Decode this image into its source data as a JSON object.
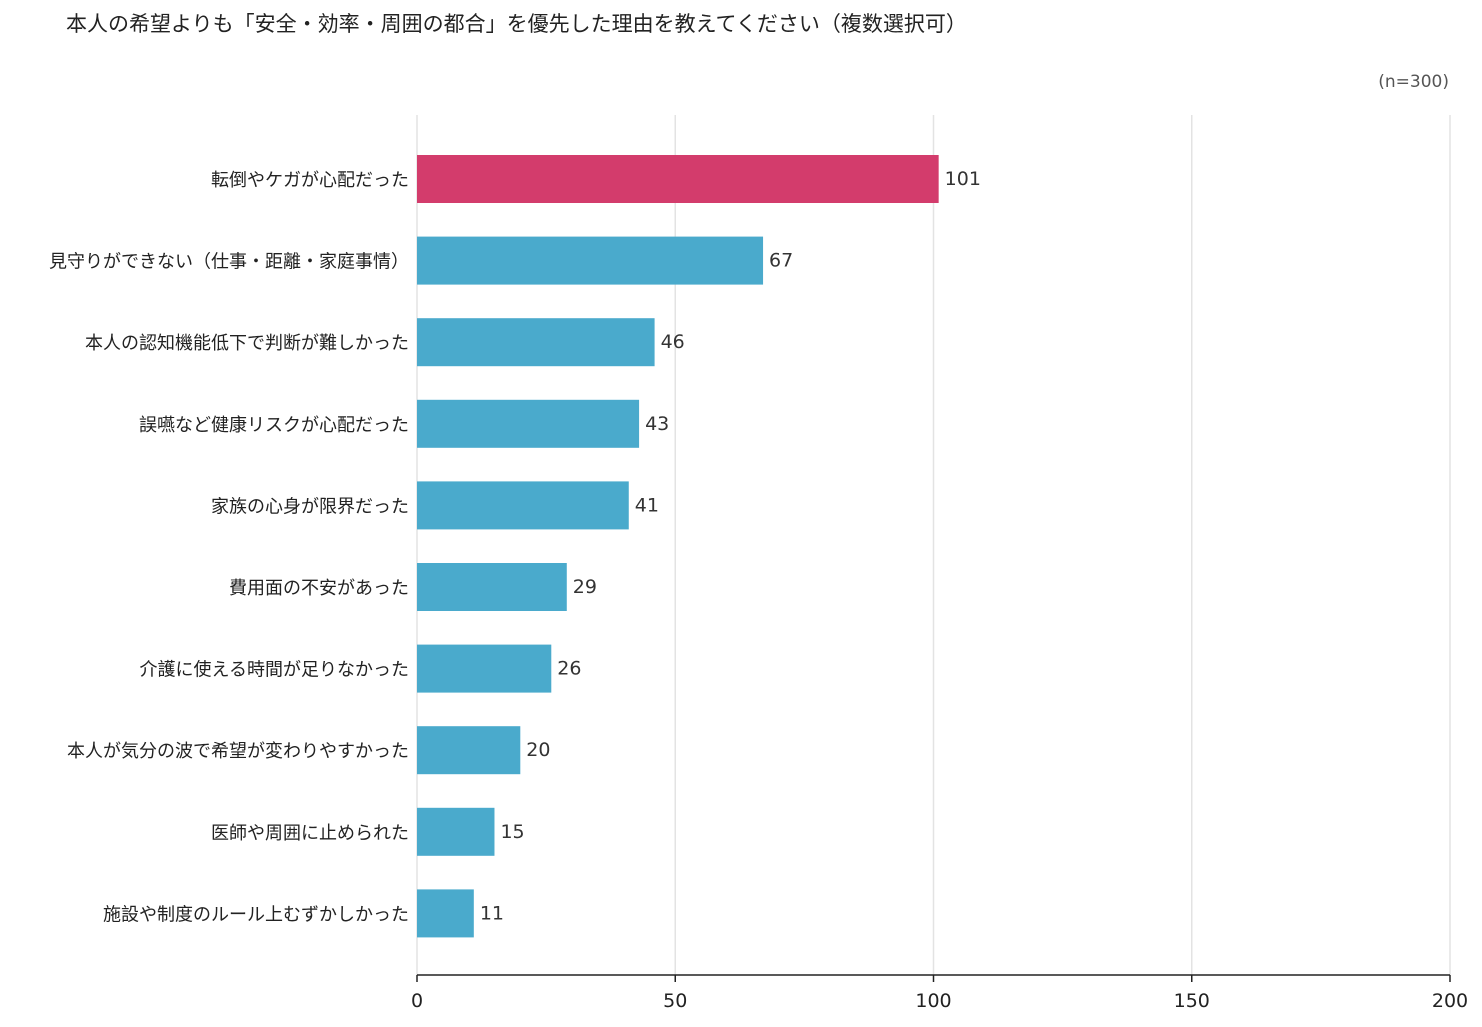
{
  "chart_data": {
    "type": "bar",
    "orientation": "horizontal",
    "title": "本人の希望よりも「安全・効率・周囲の都合」を優先した理由を教えてください（複数選択可）",
    "note": "(n=300)",
    "categories": [
      "転倒やケガが心配だった",
      "見守りができない（仕事・距離・家庭事情）",
      "本人の認知機能低下で判断が難しかった",
      "誤嚥など健康リスクが心配だった",
      "家族の心身が限界だった",
      "費用面の不安があった",
      "介護に使える時間が足りなかった",
      "本人が気分の波で希望が変わりやすかった",
      "医師や周囲に止められた",
      "施設や制度のルール上むずかしかった"
    ],
    "values": [
      101,
      67,
      46,
      43,
      41,
      29,
      26,
      20,
      15,
      11
    ],
    "xlim": [
      0,
      200
    ],
    "xticks": [
      0,
      50,
      100,
      150,
      200
    ],
    "grid": true,
    "highlight_index": 0,
    "colors": {
      "highlight": "#d33c6c",
      "bar": "#4aaacc",
      "grid": "#e3e3e3",
      "axis": "#222222"
    }
  }
}
